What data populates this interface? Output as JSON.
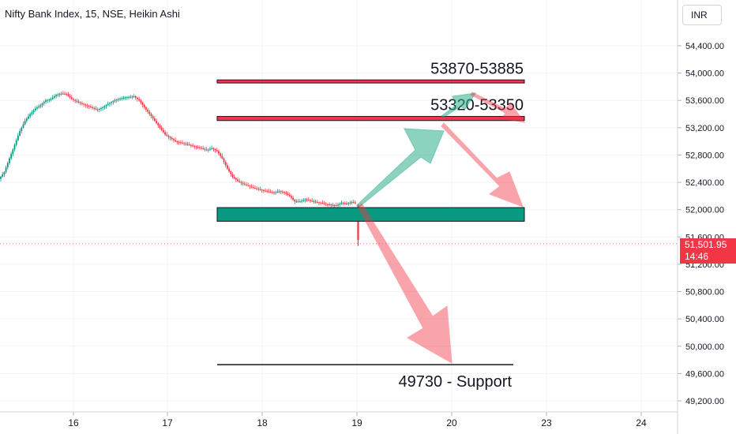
{
  "chart_data": {
    "type": "candlestick",
    "title": "Nifty Bank Index, 15, NSE, Heikin Ashi",
    "currency": "INR",
    "last_price": "51,501.95",
    "countdown": "14:46",
    "y_ticks": [
      "54,400.00",
      "54,000.00",
      "53,600.00",
      "53,200.00",
      "52,800.00",
      "52,400.00",
      "52,000.00",
      "51,600.00",
      "51,200.00",
      "50,800.00",
      "50,400.00",
      "50,000.00",
      "49,600.00",
      "49,200.00"
    ],
    "y_tick_values": [
      54400,
      54000,
      53600,
      53200,
      52800,
      52400,
      52000,
      51600,
      51200,
      50800,
      50400,
      50000,
      49600,
      49200
    ],
    "x_ticks": [
      "16",
      "17",
      "18",
      "19",
      "20",
      "23",
      "24"
    ],
    "ylim": [
      49200,
      54400
    ],
    "price_path": [
      [
        0,
        52450
      ],
      [
        3,
        52550
      ],
      [
        6,
        52750
      ],
      [
        9,
        52950
      ],
      [
        12,
        53150
      ],
      [
        15,
        53300
      ],
      [
        18,
        53400
      ],
      [
        21,
        53480
      ],
      [
        24,
        53530
      ],
      [
        27,
        53600
      ],
      [
        30,
        53620
      ],
      [
        33,
        53680
      ],
      [
        36,
        53700
      ],
      [
        39,
        53690
      ],
      [
        42,
        53620
      ],
      [
        45,
        53580
      ],
      [
        48,
        53550
      ],
      [
        51,
        53520
      ],
      [
        54,
        53490
      ],
      [
        57,
        53460
      ],
      [
        60,
        53500
      ],
      [
        63,
        53550
      ],
      [
        66,
        53590
      ],
      [
        69,
        53620
      ],
      [
        72,
        53640
      ],
      [
        75,
        53650
      ],
      [
        78,
        53660
      ],
      [
        81,
        53600
      ],
      [
        84,
        53500
      ],
      [
        87,
        53400
      ],
      [
        90,
        53300
      ],
      [
        93,
        53200
      ],
      [
        96,
        53100
      ],
      [
        99,
        53050
      ],
      [
        102,
        53000
      ],
      [
        105,
        52980
      ],
      [
        108,
        52960
      ],
      [
        111,
        52940
      ],
      [
        114,
        52920
      ],
      [
        117,
        52900
      ],
      [
        120,
        52870
      ],
      [
        123,
        52900
      ],
      [
        126,
        52860
      ],
      [
        129,
        52750
      ],
      [
        132,
        52600
      ],
      [
        135,
        52480
      ],
      [
        138,
        52420
      ],
      [
        141,
        52380
      ],
      [
        144,
        52350
      ],
      [
        147,
        52320
      ],
      [
        150,
        52300
      ],
      [
        153,
        52280
      ],
      [
        156,
        52260
      ],
      [
        159,
        52250
      ],
      [
        162,
        52270
      ],
      [
        165,
        52250
      ],
      [
        168,
        52200
      ],
      [
        171,
        52120
      ],
      [
        174,
        52120
      ],
      [
        177,
        52150
      ],
      [
        180,
        52130
      ],
      [
        183,
        52110
      ],
      [
        186,
        52100
      ],
      [
        189,
        52080
      ],
      [
        192,
        52070
      ],
      [
        195,
        52060
      ],
      [
        198,
        52100
      ],
      [
        201,
        52090
      ],
      [
        204,
        52110
      ],
      [
        206,
        52100
      ]
    ],
    "levels": [
      {
        "label": "53870-53885",
        "top": 53900,
        "bottom": 53855
      },
      {
        "label": "53320-53350",
        "top": 53365,
        "bottom": 53305
      }
    ],
    "zone": {
      "top": 52030,
      "bottom": 51830
    },
    "support": {
      "label": "49730 - Support",
      "value": 49730
    }
  }
}
